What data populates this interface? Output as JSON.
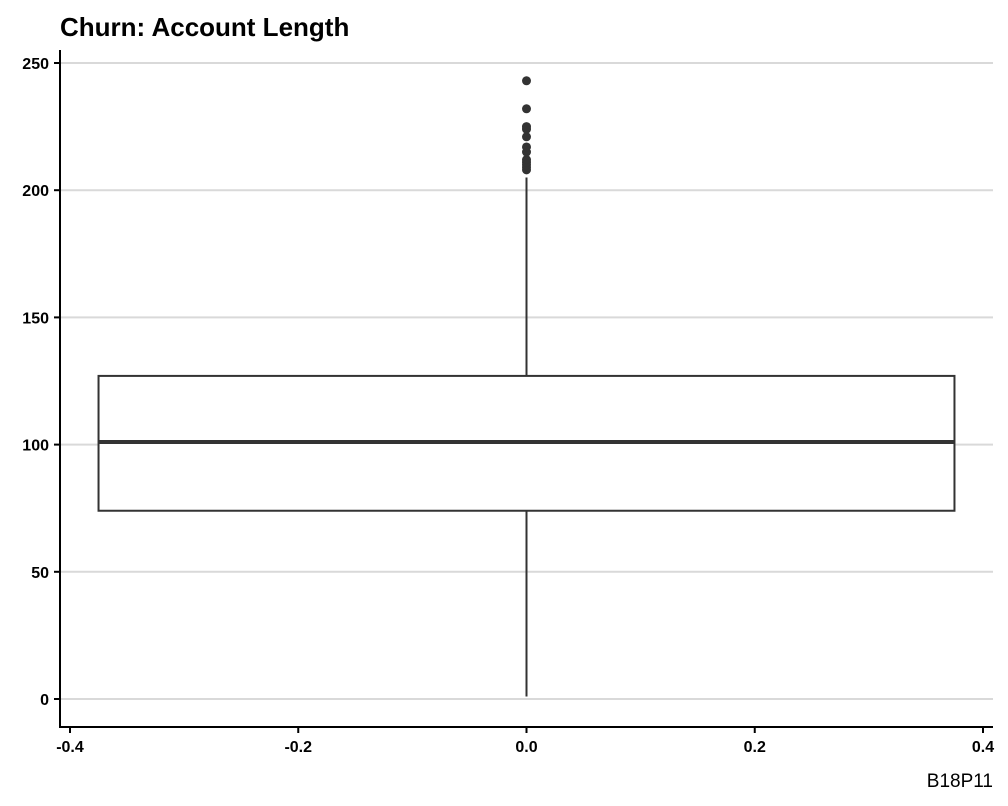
{
  "chart_data": {
    "type": "boxplot",
    "title": "Churn: Account Length",
    "caption": "B18P11",
    "xlabel": "",
    "ylabel": "",
    "xlim": [
      -0.4,
      0.4
    ],
    "ylim": [
      0,
      250
    ],
    "x_ticks": [
      "-0.4",
      "-0.2",
      "0.0",
      "0.2",
      "0.4"
    ],
    "x_tick_values": [
      -0.4,
      -0.2,
      0.0,
      0.2,
      0.4
    ],
    "y_ticks": [
      "0",
      "50",
      "100",
      "150",
      "200",
      "250"
    ],
    "y_tick_values": [
      0,
      50,
      100,
      150,
      200,
      250
    ],
    "grid": "horizontal major lines",
    "box": {
      "x_center": 0.0,
      "x_min": -0.375,
      "x_max": 0.375,
      "whisker_low": 1,
      "q1": 74,
      "median": 101,
      "q3": 127,
      "whisker_high": 205
    },
    "outliers": [
      208,
      209,
      210,
      211,
      212,
      215,
      217,
      221,
      224,
      225,
      232,
      243
    ],
    "colors": {
      "grid": "#d9d9d9",
      "axis": "#000000",
      "box": "#333333",
      "point": "#333333",
      "background": "#ffffff"
    }
  }
}
